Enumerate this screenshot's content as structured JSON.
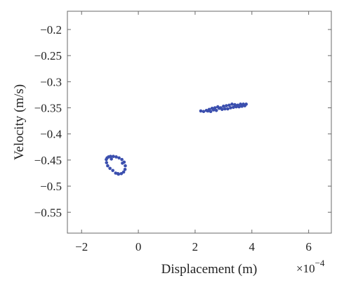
{
  "chart_data": {
    "type": "scatter",
    "title": "",
    "xlabel": "Displacement (m)",
    "ylabel": "Velocity (m/s)",
    "x_multiplier_label": "×10",
    "x_multiplier_exponent": "−4",
    "xlim": [
      -2.5,
      6.8
    ],
    "ylim": [
      -0.59,
      -0.165
    ],
    "x_ticks": [
      -2,
      0,
      2,
      4,
      6
    ],
    "x_tick_labels": [
      "−2",
      "0",
      "2",
      "4",
      "6"
    ],
    "y_ticks": [
      -0.2,
      -0.25,
      -0.3,
      -0.35,
      -0.4,
      -0.45,
      -0.5,
      -0.55
    ],
    "y_tick_labels": [
      "−0.2",
      "−0.25",
      "−0.3",
      "−0.35",
      "−0.4",
      "−0.45",
      "−0.5",
      "−0.55"
    ],
    "grid": false,
    "marker_color": "#3b4fae",
    "series": [
      {
        "x": [
          -1.05,
          -0.98,
          -0.88,
          -0.78,
          -0.68,
          -0.58,
          -0.5,
          -0.46,
          -0.47,
          -0.52,
          -0.6,
          -0.7,
          -0.8,
          -0.9,
          -1.0,
          -1.08,
          -1.12,
          -1.13,
          -1.1,
          -0.95,
          -0.72,
          -0.56
        ],
        "y": [
          -0.444,
          -0.443,
          -0.443,
          -0.444,
          -0.446,
          -0.449,
          -0.454,
          -0.461,
          -0.468,
          -0.473,
          -0.476,
          -0.477,
          -0.475,
          -0.47,
          -0.466,
          -0.461,
          -0.455,
          -0.449,
          -0.446,
          -0.448,
          -0.476,
          -0.456
        ]
      },
      {
        "x": [
          2.2,
          2.3,
          2.4,
          2.5,
          2.6,
          2.7,
          2.8,
          2.9,
          3.0,
          3.1,
          3.2,
          3.3,
          3.4,
          3.5,
          3.6,
          3.7,
          3.8,
          2.55,
          2.75,
          2.95,
          3.15,
          3.35,
          3.55,
          3.75,
          2.45,
          2.65,
          2.85,
          3.05,
          3.25,
          3.45,
          3.65
        ],
        "y": [
          -0.356,
          -0.357,
          -0.355,
          -0.353,
          -0.351,
          -0.35,
          -0.348,
          -0.35,
          -0.347,
          -0.346,
          -0.345,
          -0.343,
          -0.344,
          -0.345,
          -0.343,
          -0.343,
          -0.343,
          -0.357,
          -0.355,
          -0.353,
          -0.352,
          -0.349,
          -0.348,
          -0.346,
          -0.356,
          -0.354,
          -0.351,
          -0.352,
          -0.35,
          -0.348,
          -0.347
        ]
      }
    ]
  }
}
